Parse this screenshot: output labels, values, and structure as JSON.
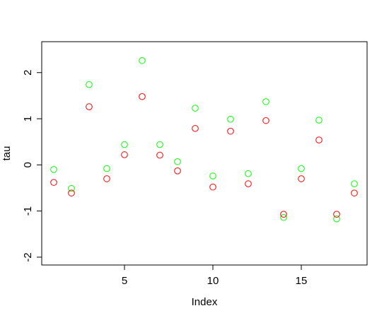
{
  "chart_data": {
    "type": "scatter",
    "x_label": "Index",
    "y_label": "tau",
    "x": [
      1,
      2,
      3,
      4,
      5,
      6,
      7,
      8,
      9,
      10,
      11,
      12,
      13,
      14,
      15,
      16,
      17,
      18
    ],
    "series": [
      {
        "color": "#00ff00",
        "values": [
          -0.1,
          -0.51,
          1.74,
          -0.08,
          0.44,
          2.26,
          0.44,
          0.07,
          1.23,
          -0.24,
          0.99,
          -0.19,
          1.37,
          -1.14,
          -0.08,
          0.97,
          -1.17,
          -0.41
        ]
      },
      {
        "color": "#ff0000",
        "values": [
          -0.38,
          -0.61,
          1.26,
          -0.3,
          0.22,
          1.48,
          0.21,
          -0.13,
          0.79,
          -0.48,
          0.73,
          -0.41,
          0.96,
          -1.07,
          -0.3,
          0.54,
          -1.07,
          -0.61
        ]
      }
    ],
    "xlim": [
      0.32,
      18.72
    ],
    "ylim": [
      -2.17,
      2.67
    ],
    "xticks": [
      5,
      10,
      15
    ],
    "yticks": [
      -2,
      -1,
      0,
      1,
      2
    ]
  }
}
